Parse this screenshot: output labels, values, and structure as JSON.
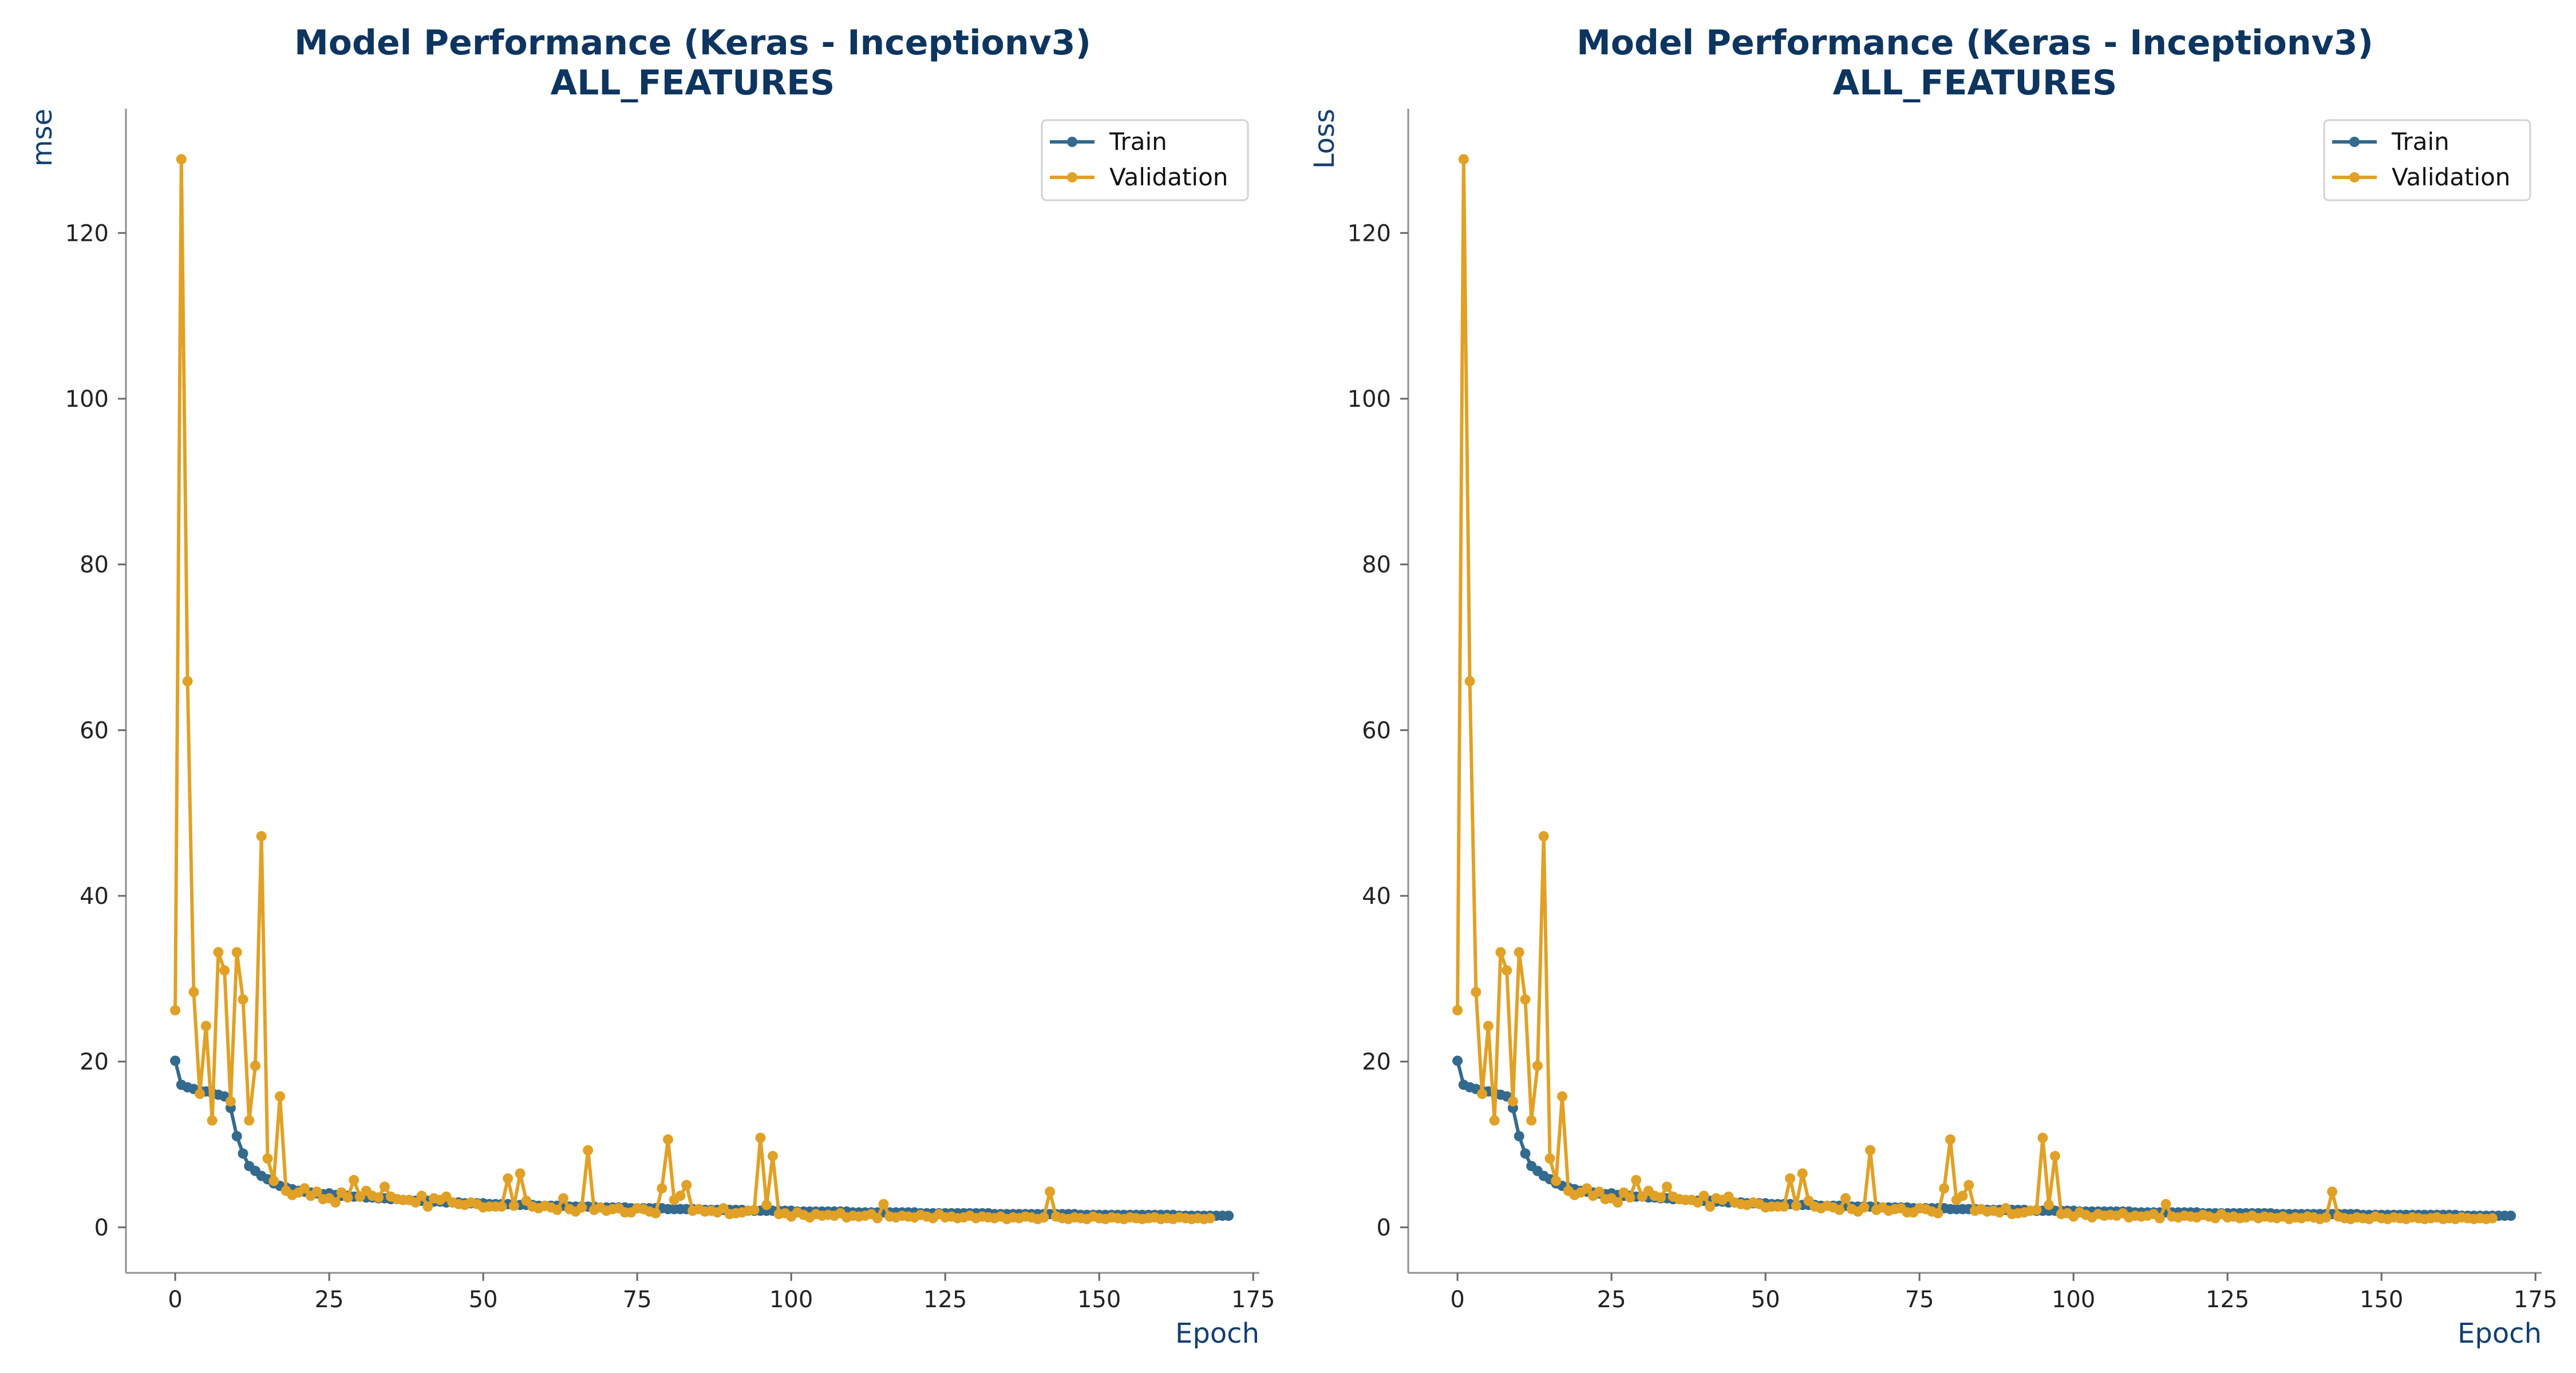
{
  "chart_data": [
    {
      "type": "line",
      "title": [
        "Model Performance (Keras - Inceptionv3)",
        "ALL_FEATURES"
      ],
      "xlabel": "Epoch",
      "ylabel": "mse",
      "xlim": [
        -8,
        176
      ],
      "ylim": [
        -5.5,
        135
      ],
      "x_ticks": [
        0,
        25,
        50,
        75,
        100,
        125,
        150,
        175
      ],
      "y_ticks": [
        0,
        20,
        40,
        60,
        80,
        100,
        120
      ],
      "grid": false,
      "legend_position": "top-right",
      "series": [
        {
          "name": "Train",
          "color": "#336a8e",
          "x_start": 0,
          "values": [
            20.1,
            17.2,
            16.9,
            16.7,
            16.5,
            16.4,
            16.2,
            16.0,
            15.8,
            14.4,
            11.0,
            8.9,
            7.4,
            6.8,
            6.2,
            5.8,
            5.3,
            5.0,
            4.8,
            4.6,
            4.4,
            4.3,
            4.2,
            4.1,
            4.0,
            4.1,
            3.9,
            3.8,
            3.8,
            3.7,
            3.7,
            3.6,
            3.6,
            3.5,
            3.5,
            3.4,
            3.4,
            3.3,
            3.3,
            3.2,
            3.2,
            3.2,
            3.1,
            3.1,
            3.0,
            3.0,
            3.0,
            2.9,
            2.9,
            2.9,
            2.9,
            2.8,
            2.8,
            2.8,
            2.8,
            2.7,
            2.7,
            2.7,
            2.7,
            2.6,
            2.6,
            2.6,
            2.6,
            2.6,
            2.5,
            2.5,
            2.5,
            2.5,
            2.5,
            2.4,
            2.4,
            2.4,
            2.4,
            2.4,
            2.3,
            2.3,
            2.3,
            2.3,
            2.3,
            2.3,
            2.2,
            2.2,
            2.2,
            2.2,
            2.2,
            2.2,
            2.1,
            2.1,
            2.1,
            2.1,
            2.1,
            2.1,
            2.1,
            2.0,
            2.0,
            2.0,
            2.0,
            2.0,
            2.0,
            2.0,
            2.0,
            1.9,
            1.9,
            1.9,
            1.9,
            1.9,
            1.9,
            1.9,
            1.9,
            1.9,
            1.8,
            1.8,
            1.8,
            1.8,
            1.8,
            1.8,
            1.8,
            1.8,
            1.8,
            1.8,
            1.8,
            1.7,
            1.7,
            1.7,
            1.7,
            1.7,
            1.7,
            1.7,
            1.7,
            1.7,
            1.7,
            1.7,
            1.7,
            1.6,
            1.6,
            1.6,
            1.6,
            1.6,
            1.6,
            1.6,
            1.6,
            1.6,
            1.6,
            1.6,
            1.6,
            1.6,
            1.6,
            1.5,
            1.5,
            1.5,
            1.5,
            1.5,
            1.5,
            1.5,
            1.5,
            1.5,
            1.5,
            1.5,
            1.5,
            1.5,
            1.5,
            1.5,
            1.5,
            1.4,
            1.4,
            1.4,
            1.4,
            1.4,
            1.4,
            1.4,
            1.4,
            1.4
          ]
        },
        {
          "name": "Validation",
          "color": "#e0a126",
          "x_start": 0,
          "values": [
            26.2,
            128.9,
            65.9,
            28.4,
            16.1,
            24.3,
            12.9,
            33.2,
            31.0,
            15.2,
            33.2,
            27.5,
            12.9,
            19.5,
            47.2,
            8.3,
            5.6,
            15.8,
            4.4,
            3.9,
            4.2,
            4.7,
            3.8,
            4.3,
            3.4,
            3.5,
            3.0,
            4.2,
            3.6,
            5.7,
            3.7,
            4.4,
            3.8,
            3.6,
            4.9,
            3.7,
            3.4,
            3.3,
            3.3,
            3.0,
            3.8,
            2.5,
            3.5,
            3.3,
            3.7,
            3.0,
            2.8,
            2.7,
            3.0,
            2.8,
            2.4,
            2.5,
            2.5,
            2.5,
            5.9,
            2.6,
            6.5,
            3.2,
            2.5,
            2.3,
            2.6,
            2.4,
            2.1,
            3.5,
            2.2,
            1.9,
            2.4,
            9.3,
            2.1,
            2.4,
            2.0,
            2.2,
            2.3,
            1.8,
            1.8,
            2.3,
            2.2,
            1.9,
            1.7,
            4.7,
            10.6,
            3.3,
            3.8,
            5.1,
            2.0,
            2.2,
            1.9,
            2.0,
            1.8,
            2.3,
            1.6,
            1.7,
            1.8,
            2.0,
            2.1,
            10.8,
            2.7,
            8.6,
            1.6,
            1.7,
            1.3,
            1.8,
            1.5,
            1.2,
            1.6,
            1.4,
            1.5,
            1.4,
            1.7,
            1.2,
            1.4,
            1.3,
            1.4,
            1.6,
            1.1,
            2.8,
            1.3,
            1.2,
            1.4,
            1.3,
            1.2,
            1.5,
            1.3,
            1.1,
            1.6,
            1.2,
            1.3,
            1.1,
            1.2,
            1.4,
            1.1,
            1.3,
            1.2,
            1.1,
            1.3,
            1.0,
            1.2,
            1.1,
            1.3,
            1.2,
            1.0,
            1.2,
            4.3,
            1.3,
            1.1,
            1.0,
            1.2,
            1.1,
            1.0,
            1.3,
            1.1,
            1.0,
            1.2,
            1.1,
            1.0,
            1.2,
            1.1,
            1.0,
            1.1,
            1.2,
            1.0,
            1.1,
            1.0,
            1.2,
            1.1,
            1.0,
            1.1,
            1.0,
            1.1
          ]
        }
      ]
    },
    {
      "type": "line",
      "title": [
        "Model Performance (Keras - Inceptionv3)",
        "ALL_FEATURES"
      ],
      "xlabel": "Epoch",
      "ylabel": "Loss",
      "xlim": [
        -8,
        176
      ],
      "ylim": [
        -5.5,
        135
      ],
      "x_ticks": [
        0,
        25,
        50,
        75,
        100,
        125,
        150,
        175
      ],
      "y_ticks": [
        0,
        20,
        40,
        60,
        80,
        100,
        120
      ],
      "grid": false,
      "legend_position": "top-right",
      "series": [
        {
          "name": "Train",
          "color": "#336a8e",
          "x_start": 0,
          "values": [
            20.1,
            17.2,
            16.9,
            16.7,
            16.5,
            16.4,
            16.2,
            16.0,
            15.8,
            14.4,
            11.0,
            8.9,
            7.4,
            6.8,
            6.2,
            5.8,
            5.3,
            5.0,
            4.8,
            4.6,
            4.4,
            4.3,
            4.2,
            4.1,
            4.0,
            4.1,
            3.9,
            3.8,
            3.8,
            3.7,
            3.7,
            3.6,
            3.6,
            3.5,
            3.5,
            3.4,
            3.4,
            3.3,
            3.3,
            3.2,
            3.2,
            3.2,
            3.1,
            3.1,
            3.0,
            3.0,
            3.0,
            2.9,
            2.9,
            2.9,
            2.9,
            2.8,
            2.8,
            2.8,
            2.8,
            2.7,
            2.7,
            2.7,
            2.7,
            2.6,
            2.6,
            2.6,
            2.6,
            2.6,
            2.5,
            2.5,
            2.5,
            2.5,
            2.5,
            2.4,
            2.4,
            2.4,
            2.4,
            2.4,
            2.3,
            2.3,
            2.3,
            2.3,
            2.3,
            2.3,
            2.2,
            2.2,
            2.2,
            2.2,
            2.2,
            2.2,
            2.1,
            2.1,
            2.1,
            2.1,
            2.1,
            2.1,
            2.1,
            2.0,
            2.0,
            2.0,
            2.0,
            2.0,
            2.0,
            2.0,
            2.0,
            1.9,
            1.9,
            1.9,
            1.9,
            1.9,
            1.9,
            1.9,
            1.9,
            1.9,
            1.8,
            1.8,
            1.8,
            1.8,
            1.8,
            1.8,
            1.8,
            1.8,
            1.8,
            1.8,
            1.8,
            1.7,
            1.7,
            1.7,
            1.7,
            1.7,
            1.7,
            1.7,
            1.7,
            1.7,
            1.7,
            1.7,
            1.7,
            1.6,
            1.6,
            1.6,
            1.6,
            1.6,
            1.6,
            1.6,
            1.6,
            1.6,
            1.6,
            1.6,
            1.6,
            1.6,
            1.6,
            1.5,
            1.5,
            1.5,
            1.5,
            1.5,
            1.5,
            1.5,
            1.5,
            1.5,
            1.5,
            1.5,
            1.5,
            1.5,
            1.5,
            1.5,
            1.5,
            1.4,
            1.4,
            1.4,
            1.4,
            1.4,
            1.4,
            1.4,
            1.4,
            1.4
          ]
        },
        {
          "name": "Validation",
          "color": "#e0a126",
          "x_start": 0,
          "values": [
            26.2,
            128.9,
            65.9,
            28.4,
            16.1,
            24.3,
            12.9,
            33.2,
            31.0,
            15.2,
            33.2,
            27.5,
            12.9,
            19.5,
            47.2,
            8.3,
            5.6,
            15.8,
            4.4,
            3.9,
            4.2,
            4.7,
            3.8,
            4.3,
            3.4,
            3.5,
            3.0,
            4.2,
            3.6,
            5.7,
            3.7,
            4.4,
            3.8,
            3.6,
            4.9,
            3.7,
            3.4,
            3.3,
            3.3,
            3.0,
            3.8,
            2.5,
            3.5,
            3.3,
            3.7,
            3.0,
            2.8,
            2.7,
            3.0,
            2.8,
            2.4,
            2.5,
            2.5,
            2.5,
            5.9,
            2.6,
            6.5,
            3.2,
            2.5,
            2.3,
            2.6,
            2.4,
            2.1,
            3.5,
            2.2,
            1.9,
            2.4,
            9.3,
            2.1,
            2.4,
            2.0,
            2.2,
            2.3,
            1.8,
            1.8,
            2.3,
            2.2,
            1.9,
            1.7,
            4.7,
            10.6,
            3.3,
            3.8,
            5.1,
            2.0,
            2.2,
            1.9,
            2.0,
            1.8,
            2.3,
            1.6,
            1.7,
            1.8,
            2.0,
            2.1,
            10.8,
            2.7,
            8.6,
            1.6,
            1.7,
            1.3,
            1.8,
            1.5,
            1.2,
            1.6,
            1.4,
            1.5,
            1.4,
            1.7,
            1.2,
            1.4,
            1.3,
            1.4,
            1.6,
            1.1,
            2.8,
            1.3,
            1.2,
            1.4,
            1.3,
            1.2,
            1.5,
            1.3,
            1.1,
            1.6,
            1.2,
            1.3,
            1.1,
            1.2,
            1.4,
            1.1,
            1.3,
            1.2,
            1.1,
            1.3,
            1.0,
            1.2,
            1.1,
            1.3,
            1.2,
            1.0,
            1.2,
            4.3,
            1.3,
            1.1,
            1.0,
            1.2,
            1.1,
            1.0,
            1.3,
            1.1,
            1.0,
            1.2,
            1.1,
            1.0,
            1.2,
            1.1,
            1.0,
            1.1,
            1.2,
            1.0,
            1.1,
            1.0,
            1.2,
            1.1,
            1.0,
            1.1,
            1.0,
            1.1
          ]
        }
      ]
    }
  ]
}
